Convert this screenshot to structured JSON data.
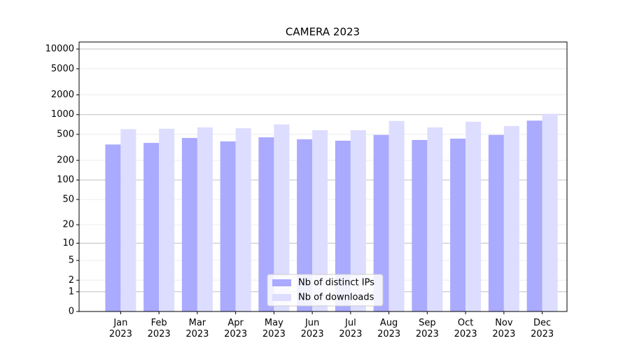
{
  "chart_data": {
    "type": "bar",
    "title": "CAMERA 2023",
    "categories": [
      "Jan 2023",
      "Feb 2023",
      "Mar 2023",
      "Apr 2023",
      "May 2023",
      "Jun 2023",
      "Jul 2023",
      "Aug 2023",
      "Sep 2023",
      "Oct 2023",
      "Nov 2023",
      "Dec 2023"
    ],
    "series": [
      {
        "name": "Nb of distinct IPs",
        "color": "#aaaaff",
        "values": [
          350,
          370,
          440,
          390,
          450,
          420,
          400,
          490,
          410,
          430,
          490,
          810
        ]
      },
      {
        "name": "Nb of downloads",
        "color": "#ddddff",
        "values": [
          600,
          610,
          640,
          620,
          710,
          580,
          580,
          800,
          640,
          780,
          670,
          1030
        ]
      }
    ],
    "yscale": "log1p",
    "ylim": [
      0,
      12800
    ],
    "yticks": [
      0,
      1,
      2,
      5,
      10,
      20,
      50,
      100,
      200,
      500,
      1000,
      2000,
      5000,
      10000
    ],
    "grid": true,
    "legend": "lower center"
  }
}
